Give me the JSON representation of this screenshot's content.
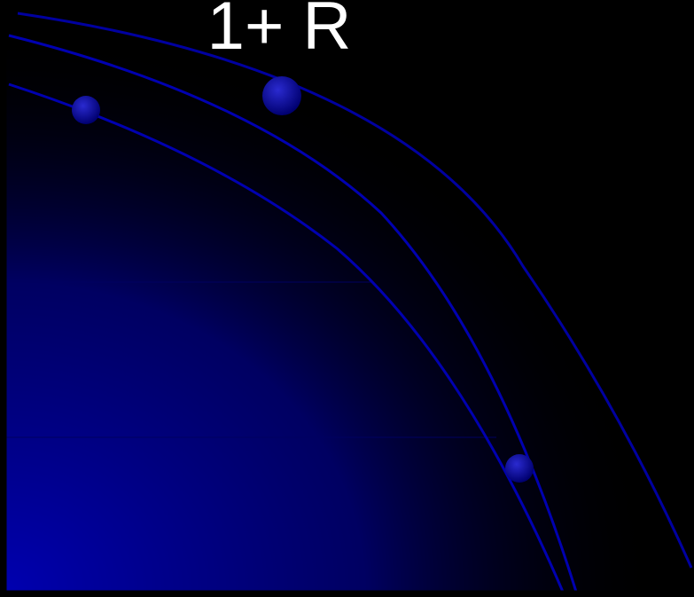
{
  "title": "1+ R"
}
